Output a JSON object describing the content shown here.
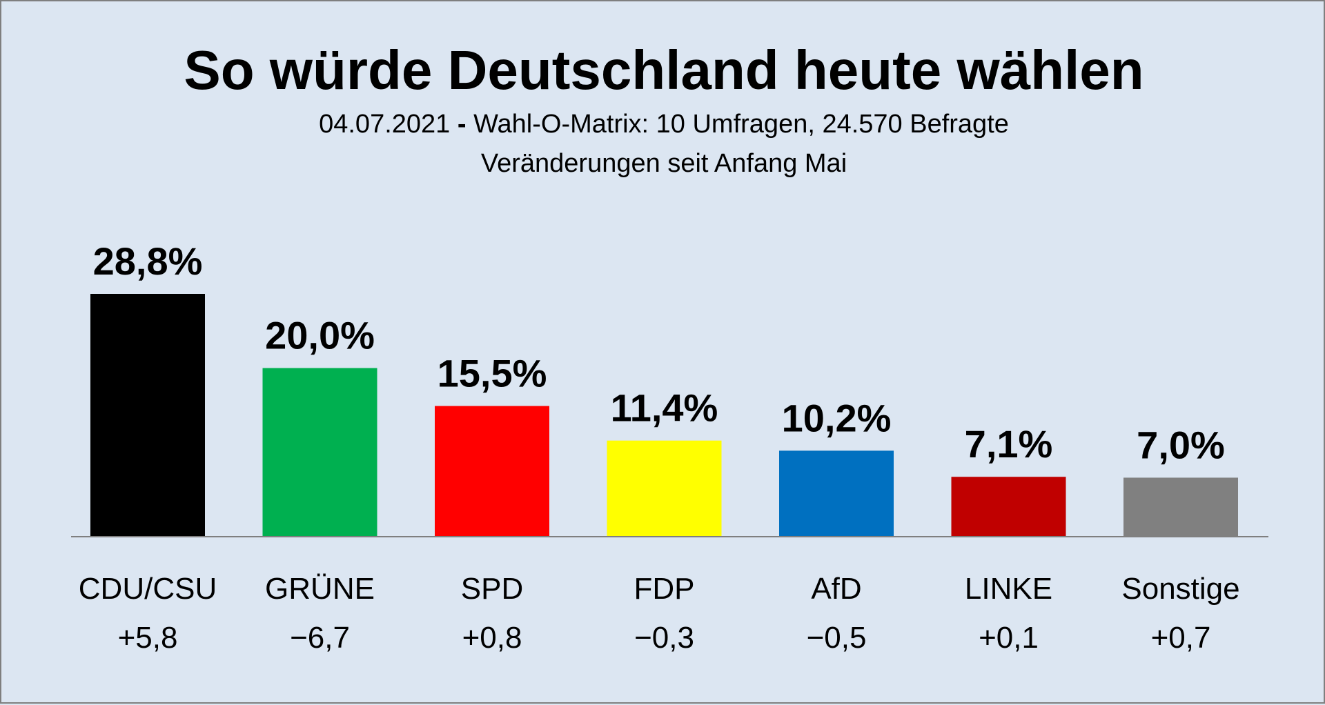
{
  "chart_data": {
    "type": "bar",
    "title": "So würde Deutschland heute wählen",
    "subtitle_parts": [
      "04.07.2021",
      "-",
      "Wahl-O-Matrix: 10 Umfragen, 24.570 Befragte"
    ],
    "subtitle2": "Veränderungen seit Anfang Mai",
    "categories": [
      "CDU/CSU",
      "GRÜNE",
      "SPD",
      "FDP",
      "AfD",
      "LINKE",
      "Sonstige"
    ],
    "values": [
      28.8,
      20.0,
      15.5,
      11.4,
      10.2,
      7.1,
      7.0
    ],
    "value_labels": [
      "28,8%",
      "20,0%",
      "15,5%",
      "11,4%",
      "10,2%",
      "7,1%",
      "7,0%"
    ],
    "changes": [
      "+5,8",
      "−6,7",
      "+0,8",
      "−0,3",
      "−0,5",
      "+0,1",
      "+0,7"
    ],
    "colors": [
      "#000000",
      "#00b050",
      "#ff0000",
      "#ffff00",
      "#0070c0",
      "#c00000",
      "#808080"
    ],
    "ylim": [
      0,
      33
    ],
    "grid": false
  }
}
